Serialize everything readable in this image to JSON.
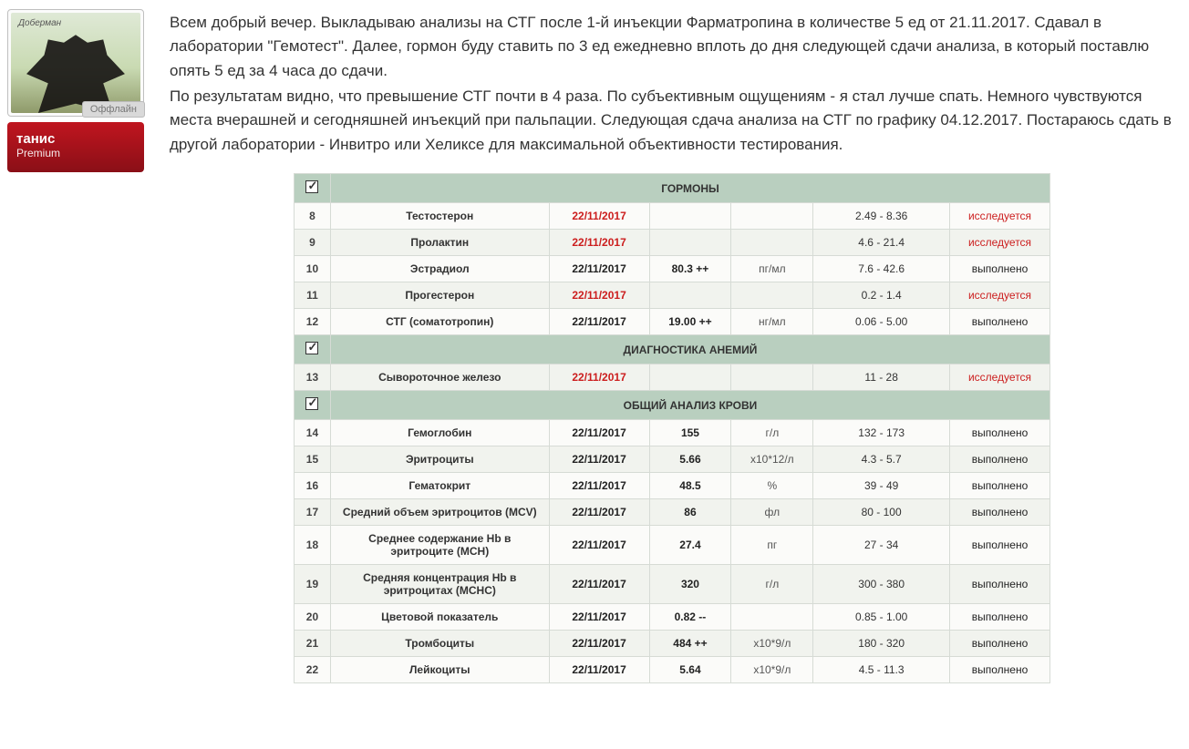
{
  "user": {
    "name": "танис",
    "rank": "Premium",
    "status": "Оффлайн",
    "breed_caption": "Доберман"
  },
  "post_paragraphs": [
    "Всем добрый вечер. Выкладываю анализы на СТГ после 1-й инъекции Фарматропина в количестве 5 ед от 21.11.2017. Сдавал в лаборатории \"Гемотест\". Далее, гормон буду ставить по 3 ед ежедневно вплоть до дня следующей сдачи анализа, в который поставлю опять 5 ед за 4 часа до сдачи.",
    "По результатам видно, что превышение СТГ почти в 4 раза. По субъективным ощущениям - я стал лучше спать. Немного чувствуются места вчерашней и сегодняшней инъекций при пальпации. Следующая сдача анализа на СТГ по графику 04.12.2017. Постараюсь сдать в другой лаборатории - Инвитро или Хеликсе для максимальной объективности тестирования."
  ],
  "lab": {
    "colors": {
      "section_bg": "#b9cfbf",
      "border": "#d6dbd5",
      "red": "#cc1e1e",
      "row_odd": "#fbfbf9",
      "row_even": "#f1f3ee"
    },
    "sections": [
      {
        "title": "ГОРМОНЫ",
        "rows": [
          {
            "idx": "8",
            "name": "Тестостерон",
            "date": "22/11/2017",
            "date_red": true,
            "value": "",
            "unit": "",
            "range": "2.49 - 8.36",
            "status": "исследуется",
            "status_red": true
          },
          {
            "idx": "9",
            "name": "Пролактин",
            "date": "22/11/2017",
            "date_red": true,
            "value": "",
            "unit": "",
            "range": "4.6 - 21.4",
            "status": "исследуется",
            "status_red": true
          },
          {
            "idx": "10",
            "name": "Эстрадиол",
            "date": "22/11/2017",
            "date_red": false,
            "value": "80.3 ++",
            "unit": "пг/мл",
            "range": "7.6 - 42.6",
            "status": "выполнено",
            "status_red": false
          },
          {
            "idx": "11",
            "name": "Прогестерон",
            "date": "22/11/2017",
            "date_red": true,
            "value": "",
            "unit": "",
            "range": "0.2 - 1.4",
            "status": "исследуется",
            "status_red": true
          },
          {
            "idx": "12",
            "name": "СТГ (соматотропин)",
            "date": "22/11/2017",
            "date_red": false,
            "value": "19.00 ++",
            "unit": "нг/мл",
            "range": "0.06 - 5.00",
            "status": "выполнено",
            "status_red": false
          }
        ]
      },
      {
        "title": "ДИАГНОСТИКА АНЕМИЙ",
        "rows": [
          {
            "idx": "13",
            "name": "Сывороточное железо",
            "date": "22/11/2017",
            "date_red": true,
            "value": "",
            "unit": "",
            "range": "11 - 28",
            "status": "исследуется",
            "status_red": true
          }
        ]
      },
      {
        "title": "ОБЩИЙ АНАЛИЗ КРОВИ",
        "rows": [
          {
            "idx": "14",
            "name": "Гемоглобин",
            "date": "22/11/2017",
            "date_red": false,
            "value": "155",
            "unit": "г/л",
            "range": "132 - 173",
            "status": "выполнено",
            "status_red": false
          },
          {
            "idx": "15",
            "name": "Эритроциты",
            "date": "22/11/2017",
            "date_red": false,
            "value": "5.66",
            "unit": "x10*12/л",
            "range": "4.3 - 5.7",
            "status": "выполнено",
            "status_red": false
          },
          {
            "idx": "16",
            "name": "Гематокрит",
            "date": "22/11/2017",
            "date_red": false,
            "value": "48.5",
            "unit": "%",
            "range": "39 - 49",
            "status": "выполнено",
            "status_red": false
          },
          {
            "idx": "17",
            "name": "Средний объем эритроцитов (MCV)",
            "date": "22/11/2017",
            "date_red": false,
            "value": "86",
            "unit": "фл",
            "range": "80 - 100",
            "status": "выполнено",
            "status_red": false
          },
          {
            "idx": "18",
            "name": "Среднее содержание Hb в эритроците (MCH)",
            "date": "22/11/2017",
            "date_red": false,
            "value": "27.4",
            "unit": "пг",
            "range": "27 - 34",
            "status": "выполнено",
            "status_red": false
          },
          {
            "idx": "19",
            "name": "Средняя концентрация Hb в эритроцитах (MCHC)",
            "date": "22/11/2017",
            "date_red": false,
            "value": "320",
            "unit": "г/л",
            "range": "300 - 380",
            "status": "выполнено",
            "status_red": false
          },
          {
            "idx": "20",
            "name": "Цветовой показатель",
            "date": "22/11/2017",
            "date_red": false,
            "value": "0.82 --",
            "unit": "",
            "range": "0.85 - 1.00",
            "status": "выполнено",
            "status_red": false
          },
          {
            "idx": "21",
            "name": "Тромбоциты",
            "date": "22/11/2017",
            "date_red": false,
            "value": "484 ++",
            "unit": "x10*9/л",
            "range": "180 - 320",
            "status": "выполнено",
            "status_red": false
          },
          {
            "idx": "22",
            "name": "Лейкоциты",
            "date": "22/11/2017",
            "date_red": false,
            "value": "5.64",
            "unit": "x10*9/л",
            "range": "4.5 - 11.3",
            "status": "выполнено",
            "status_red": false
          }
        ]
      }
    ]
  }
}
